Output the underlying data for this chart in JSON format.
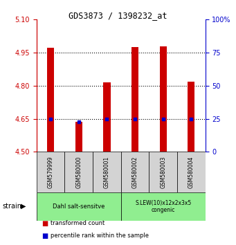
{
  "title": "GDS3873 / 1398232_at",
  "samples": [
    "GSM579999",
    "GSM580000",
    "GSM580001",
    "GSM580002",
    "GSM580003",
    "GSM580004"
  ],
  "red_values": [
    4.972,
    4.635,
    4.815,
    4.975,
    4.98,
    4.82
  ],
  "blue_values": [
    4.65,
    4.638,
    4.65,
    4.65,
    4.65,
    4.648
  ],
  "y_min": 4.5,
  "y_max": 5.1,
  "y_ticks_red": [
    4.5,
    4.65,
    4.8,
    4.95,
    5.1
  ],
  "y_ticks_blue": [
    0,
    25,
    50,
    75,
    100
  ],
  "group1_label": "Dahl salt-sensitve",
  "group2_label": "S.LEW(10)x12x2x3x5\ncongenic",
  "group1_indices": [
    0,
    1,
    2
  ],
  "group2_indices": [
    3,
    4,
    5
  ],
  "group_color": "#90EE90",
  "bar_color_red": "#CC0000",
  "bar_color_blue": "#0000CC",
  "legend_red": "transformed count",
  "legend_blue": "percentile rank within the sample",
  "strain_label": "strain",
  "sample_box_color": "#D3D3D3",
  "axis_color_red": "#CC0000",
  "axis_color_blue": "#0000CC",
  "bar_width": 0.25
}
